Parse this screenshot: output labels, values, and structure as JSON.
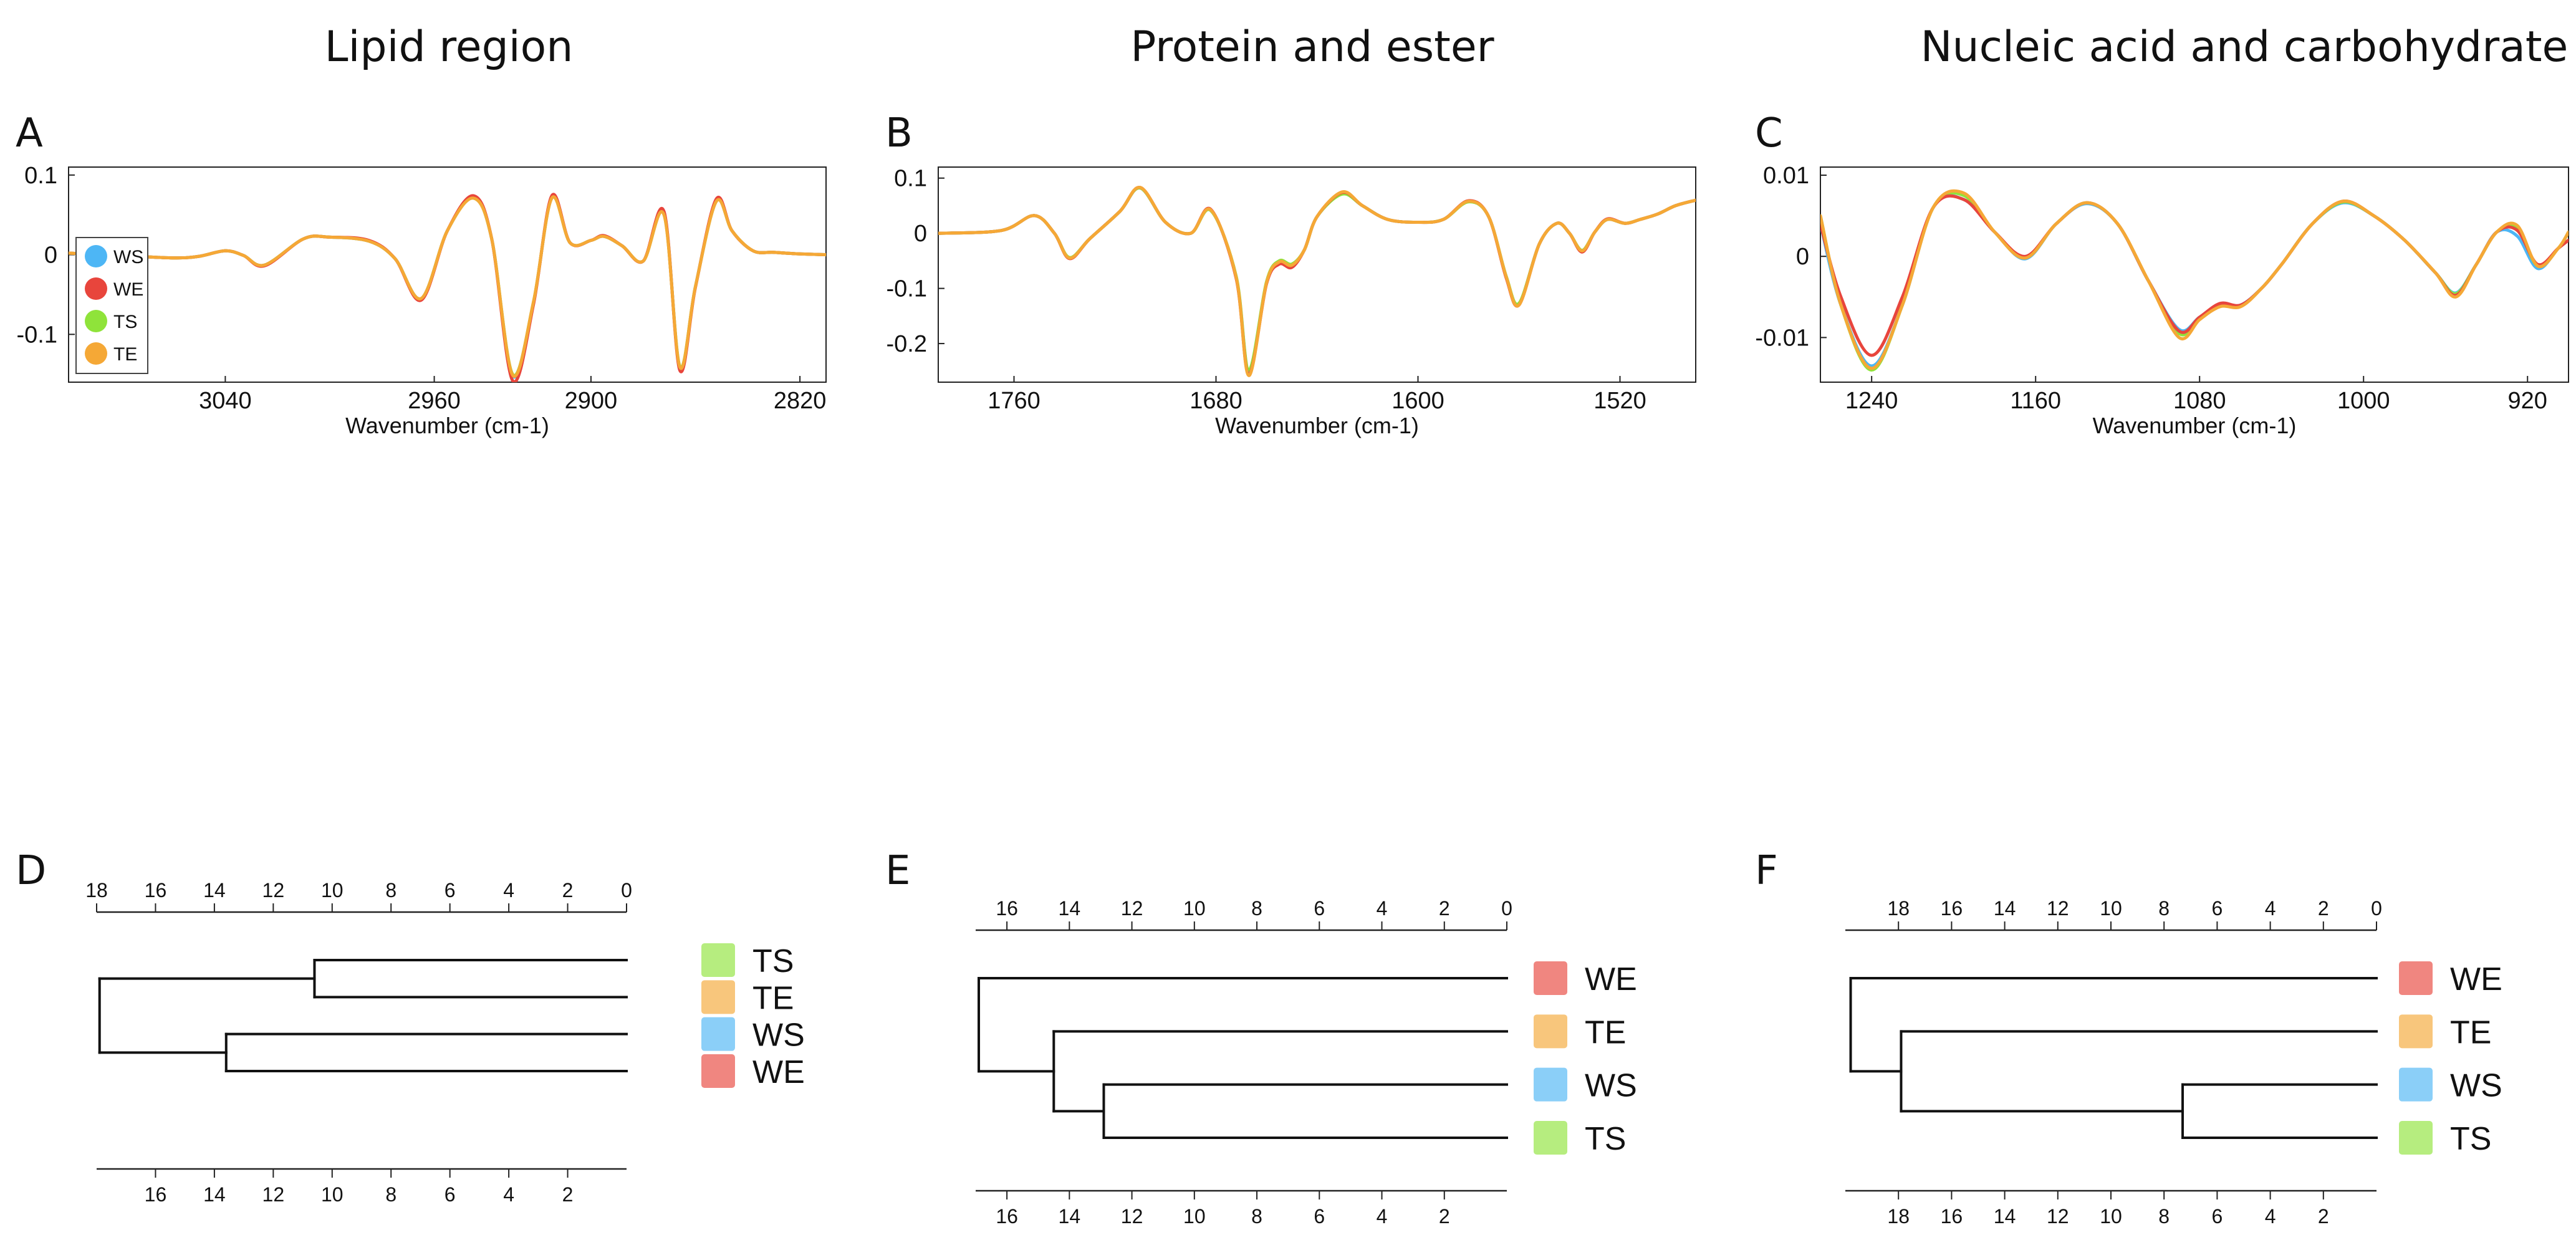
{
  "panel_titles": [
    "Lipid region",
    "Protein and ester",
    "Nucleic acid and carbohydrate"
  ],
  "panel_letters": [
    "A",
    "B",
    "C",
    "D",
    "E",
    "F"
  ],
  "colors": {
    "WS": "#4db6f5",
    "WE": "#e8453c",
    "TS": "#8fe33a",
    "TE": "#f5a836"
  },
  "chart_data": [
    {
      "type": "line",
      "panel": "A",
      "title": "Lipid region",
      "xlabel": "Wavenumber (cm-1)",
      "ylabel": "",
      "xlim": [
        3100,
        2810
      ],
      "ylim": [
        -0.16,
        0.11
      ],
      "xticks": [
        3040,
        2960,
        2900,
        2820
      ],
      "xtick_labels": [
        "3040",
        "2960",
        "2900",
        "2820"
      ],
      "yticks": [
        0.1,
        0,
        -0.1
      ],
      "ytick_labels": [
        "0.1",
        "0",
        "-0.1"
      ],
      "legend": [
        "WS",
        "WE",
        "TS",
        "TE"
      ],
      "legend_position": "bottom-left",
      "x": [
        3100,
        3080,
        3060,
        3050,
        3040,
        3033,
        3025,
        3010,
        3000,
        2985,
        2975,
        2965,
        2955,
        2945,
        2938,
        2930,
        2922,
        2915,
        2908,
        2900,
        2895,
        2888,
        2880,
        2872,
        2866,
        2860,
        2852,
        2846,
        2838,
        2830,
        2820,
        2810
      ],
      "series": [
        {
          "name": "WS",
          "values": [
            0.002,
            -0.001,
            -0.004,
            -0.002,
            0.005,
            -0.001,
            -0.013,
            0.02,
            0.022,
            0.017,
            -0.005,
            -0.055,
            0.03,
            0.072,
            0.02,
            -0.152,
            -0.06,
            0.072,
            0.015,
            0.018,
            0.023,
            0.011,
            -0.008,
            0.052,
            -0.142,
            -0.04,
            0.068,
            0.03,
            0.005,
            0.003,
            0.001,
            0.0
          ]
        },
        {
          "name": "WE",
          "values": [
            0.002,
            -0.001,
            -0.004,
            -0.002,
            0.005,
            -0.001,
            -0.014,
            0.02,
            0.022,
            0.018,
            -0.005,
            -0.057,
            0.03,
            0.074,
            0.02,
            -0.158,
            -0.062,
            0.074,
            0.015,
            0.018,
            0.024,
            0.011,
            -0.008,
            0.054,
            -0.145,
            -0.041,
            0.07,
            0.03,
            0.005,
            0.003,
            0.001,
            0.0
          ]
        },
        {
          "name": "TS",
          "values": [
            0.002,
            -0.001,
            -0.004,
            -0.002,
            0.005,
            -0.001,
            -0.013,
            0.02,
            0.022,
            0.017,
            -0.005,
            -0.055,
            0.03,
            0.071,
            0.02,
            -0.15,
            -0.059,
            0.071,
            0.015,
            0.018,
            0.023,
            0.011,
            -0.008,
            0.05,
            -0.14,
            -0.04,
            0.067,
            0.03,
            0.005,
            0.003,
            0.001,
            0.0
          ]
        },
        {
          "name": "TE",
          "values": [
            0.002,
            -0.001,
            -0.004,
            -0.002,
            0.005,
            -0.001,
            -0.013,
            0.02,
            0.022,
            0.017,
            -0.005,
            -0.055,
            0.03,
            0.071,
            0.02,
            -0.151,
            -0.059,
            0.071,
            0.015,
            0.018,
            0.023,
            0.011,
            -0.008,
            0.05,
            -0.141,
            -0.04,
            0.067,
            0.03,
            0.005,
            0.003,
            0.001,
            0.0
          ]
        }
      ]
    },
    {
      "type": "line",
      "panel": "B",
      "title": "Protein and ester",
      "xlabel": "Wavenumber (cm-1)",
      "ylabel": "",
      "xlim": [
        1790,
        1490
      ],
      "ylim": [
        -0.27,
        0.12
      ],
      "xticks": [
        1760,
        1680,
        1600,
        1520
      ],
      "xtick_labels": [
        "1760",
        "1680",
        "1600",
        "1520"
      ],
      "yticks": [
        0.1,
        0,
        -0.1,
        -0.2
      ],
      "ytick_labels": [
        "0.1",
        "0",
        "-0.1",
        "-0.2"
      ],
      "x": [
        1790,
        1765,
        1752,
        1744,
        1738,
        1730,
        1718,
        1710,
        1700,
        1690,
        1682,
        1672,
        1667,
        1660,
        1655,
        1650,
        1645,
        1640,
        1630,
        1622,
        1612,
        1600,
        1590,
        1580,
        1572,
        1565,
        1560,
        1552,
        1545,
        1540,
        1535,
        1530,
        1525,
        1518,
        1512,
        1505,
        1498,
        1490
      ],
      "series": [
        {
          "name": "WS",
          "values": [
            0.0,
            0.005,
            0.032,
            0.0,
            -0.045,
            -0.01,
            0.04,
            0.082,
            0.02,
            0.0,
            0.042,
            -0.08,
            -0.25,
            -0.09,
            -0.052,
            -0.058,
            -0.03,
            0.03,
            0.072,
            0.05,
            0.025,
            0.02,
            0.025,
            0.058,
            0.03,
            -0.08,
            -0.128,
            -0.02,
            0.018,
            0.0,
            -0.032,
            0.002,
            0.025,
            0.018,
            0.025,
            0.035,
            0.05,
            0.06
          ]
        },
        {
          "name": "WE",
          "values": [
            0.0,
            0.005,
            0.032,
            0.0,
            -0.046,
            -0.01,
            0.04,
            0.083,
            0.02,
            0.0,
            0.043,
            -0.082,
            -0.256,
            -0.092,
            -0.056,
            -0.062,
            -0.03,
            0.03,
            0.074,
            0.05,
            0.025,
            0.02,
            0.025,
            0.059,
            0.03,
            -0.082,
            -0.13,
            -0.02,
            0.018,
            0.0,
            -0.034,
            0.002,
            0.026,
            0.018,
            0.025,
            0.035,
            0.05,
            0.06
          ]
        },
        {
          "name": "TS",
          "values": [
            0.0,
            0.005,
            0.032,
            0.0,
            -0.044,
            -0.01,
            0.04,
            0.082,
            0.02,
            0.0,
            0.041,
            -0.078,
            -0.248,
            -0.088,
            -0.05,
            -0.056,
            -0.03,
            0.03,
            0.071,
            0.05,
            0.025,
            0.02,
            0.025,
            0.057,
            0.03,
            -0.079,
            -0.127,
            -0.02,
            0.018,
            0.0,
            -0.031,
            0.002,
            0.025,
            0.018,
            0.025,
            0.035,
            0.05,
            0.06
          ]
        },
        {
          "name": "TE",
          "values": [
            0.0,
            0.005,
            0.032,
            0.0,
            -0.045,
            -0.01,
            0.04,
            0.083,
            0.02,
            0.0,
            0.042,
            -0.08,
            -0.258,
            -0.09,
            -0.052,
            -0.058,
            -0.03,
            0.03,
            0.075,
            0.05,
            0.025,
            0.02,
            0.025,
            0.058,
            0.03,
            -0.08,
            -0.13,
            -0.02,
            0.018,
            0.0,
            -0.032,
            0.002,
            0.025,
            0.018,
            0.025,
            0.035,
            0.05,
            0.06
          ]
        }
      ]
    },
    {
      "type": "line",
      "panel": "C",
      "title": "Nucleic acid and carbohydrate",
      "xlabel": "Wavenumber (cm-1)",
      "ylabel": "",
      "xlim": [
        1265,
        900
      ],
      "ylim": [
        -0.0155,
        0.011
      ],
      "xticks": [
        1240,
        1160,
        1080,
        1000,
        920
      ],
      "xtick_labels": [
        "1240",
        "1160",
        "1080",
        "1000",
        "920"
      ],
      "yticks": [
        0.01,
        0,
        -0.01
      ],
      "ytick_labels": [
        "0.01",
        "0",
        "-0.01"
      ],
      "x": [
        1265,
        1255,
        1240,
        1225,
        1210,
        1195,
        1180,
        1165,
        1150,
        1135,
        1120,
        1105,
        1090,
        1080,
        1070,
        1060,
        1050,
        1040,
        1025,
        1010,
        995,
        980,
        965,
        955,
        945,
        935,
        925,
        915,
        905,
        900
      ],
      "series": [
        {
          "name": "WS",
          "values": [
            0.004,
            -0.006,
            -0.0135,
            -0.006,
            0.006,
            0.007,
            0.003,
            -0.0003,
            0.004,
            0.0065,
            0.004,
            -0.003,
            -0.009,
            -0.0075,
            -0.006,
            -0.006,
            -0.004,
            -0.001,
            0.004,
            0.0066,
            0.005,
            0.002,
            -0.002,
            -0.0045,
            -0.001,
            0.003,
            0.0025,
            -0.0015,
            0.001,
            0.002
          ]
        },
        {
          "name": "WE",
          "values": [
            0.004,
            -0.005,
            -0.0122,
            -0.005,
            0.006,
            0.007,
            0.003,
            0.0,
            0.004,
            0.0066,
            0.004,
            -0.003,
            -0.0092,
            -0.0075,
            -0.0058,
            -0.006,
            -0.004,
            -0.001,
            0.004,
            0.0068,
            0.005,
            0.002,
            -0.002,
            -0.0048,
            -0.001,
            0.003,
            0.0032,
            -0.001,
            0.001,
            0.002
          ]
        },
        {
          "name": "TS",
          "values": [
            0.005,
            -0.006,
            -0.014,
            -0.006,
            0.006,
            0.0075,
            0.003,
            -0.0002,
            0.004,
            0.0066,
            0.004,
            -0.003,
            -0.0095,
            -0.0076,
            -0.006,
            -0.0061,
            -0.004,
            -0.001,
            0.004,
            0.0067,
            0.005,
            0.002,
            -0.002,
            -0.0046,
            -0.001,
            0.003,
            0.0035,
            -0.0012,
            0.001,
            0.003
          ]
        },
        {
          "name": "TE",
          "values": [
            0.005,
            -0.006,
            -0.0138,
            -0.006,
            0.006,
            0.0078,
            0.003,
            -0.0002,
            0.004,
            0.0066,
            0.004,
            -0.003,
            -0.01,
            -0.0078,
            -0.0062,
            -0.0062,
            -0.004,
            -0.001,
            0.004,
            0.0068,
            0.005,
            0.002,
            -0.002,
            -0.005,
            -0.001,
            0.003,
            0.0038,
            -0.0012,
            0.001,
            0.003
          ]
        }
      ]
    },
    {
      "type": "dendrogram",
      "panel": "D",
      "leaves": [
        "TS",
        "TE",
        "WS",
        "WE"
      ],
      "top_axis_ticks": [
        18,
        16,
        14,
        12,
        10,
        8,
        6,
        4,
        2,
        0
      ],
      "bottom_axis_ticks": [
        16,
        14,
        12,
        10,
        8,
        6,
        4,
        2
      ],
      "axis_range": [
        18,
        0
      ],
      "merges": [
        {
          "pair": [
            "TS",
            "TE"
          ],
          "height": 10.6
        },
        {
          "pair": [
            "WS",
            "WE"
          ],
          "height": 13.6
        },
        {
          "pair": [
            "TS,TE",
            "WS,WE"
          ],
          "height": 17.9
        }
      ]
    },
    {
      "type": "dendrogram",
      "panel": "E",
      "leaves": [
        "WE",
        "TE",
        "WS",
        "TS"
      ],
      "top_axis_ticks": [
        16,
        14,
        12,
        10,
        8,
        6,
        4,
        2,
        0
      ],
      "bottom_axis_ticks": [
        16,
        14,
        12,
        10,
        8,
        6,
        4,
        2
      ],
      "axis_range": [
        17,
        0
      ],
      "merges": [
        {
          "pair": [
            "WS",
            "TS"
          ],
          "height": 12.9
        },
        {
          "pair": [
            "TE",
            "WS,TS"
          ],
          "height": 14.5
        },
        {
          "pair": [
            "WE",
            "TE,WS,TS"
          ],
          "height": 16.9
        }
      ]
    },
    {
      "type": "dendrogram",
      "panel": "F",
      "leaves": [
        "WE",
        "TE",
        "WS",
        "TS"
      ],
      "top_axis_ticks": [
        18,
        16,
        14,
        12,
        10,
        8,
        6,
        4,
        2,
        0
      ],
      "bottom_axis_ticks": [
        18,
        16,
        14,
        12,
        10,
        8,
        6,
        4,
        2
      ],
      "axis_range": [
        20,
        0
      ],
      "merges": [
        {
          "pair": [
            "WS",
            "TS"
          ],
          "height": 7.3
        },
        {
          "pair": [
            "TE",
            "WS,TS"
          ],
          "height": 17.9
        },
        {
          "pair": [
            "WE",
            "TE,WS,TS"
          ],
          "height": 19.8
        }
      ]
    }
  ]
}
